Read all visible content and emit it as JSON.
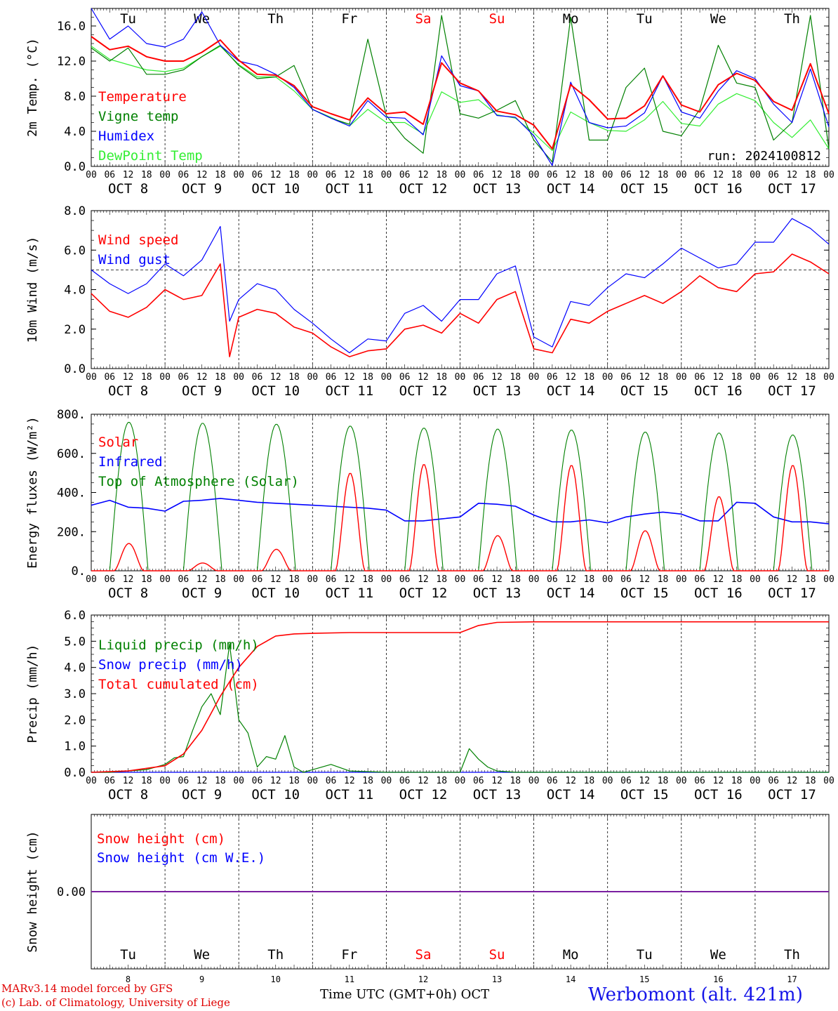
{
  "days": [
    {
      "weekday": "Tu",
      "date": "OCT  8",
      "num": "8",
      "weekend": false
    },
    {
      "weekday": "We",
      "date": "OCT  9",
      "num": "9",
      "weekend": false
    },
    {
      "weekday": "Th",
      "date": "OCT 10",
      "num": "10",
      "weekend": false
    },
    {
      "weekday": "Fr",
      "date": "OCT 11",
      "num": "11",
      "weekend": false
    },
    {
      "weekday": "Sa",
      "date": "OCT 12",
      "num": "12",
      "weekend": true
    },
    {
      "weekday": "Su",
      "date": "OCT 13",
      "num": "13",
      "weekend": true
    },
    {
      "weekday": "Mo",
      "date": "OCT 14",
      "num": "14",
      "weekend": false
    },
    {
      "weekday": "Tu",
      "date": "OCT 15",
      "num": "15",
      "weekend": false
    },
    {
      "weekday": "We",
      "date": "OCT 16",
      "num": "16",
      "weekend": false
    },
    {
      "weekday": "Th",
      "date": "OCT 17",
      "num": "17",
      "weekend": false
    }
  ],
  "hour_ticks": [
    "00",
    "06",
    "12",
    "18"
  ],
  "final_hour_tick": "00",
  "footer": {
    "credit_line1": "MARv3.14 model forced by GFS",
    "credit_line2": "(c) Lab. of Climatology, University of Liege",
    "xaxis_caption": "Time UTC (GMT+0h) OCT",
    "station": "Werbomont (alt. 421m)"
  },
  "colors": {
    "red": "#ff0000",
    "green": "#008000",
    "blue": "#0000ff",
    "light_green": "#33ee33",
    "purple": "#7a1fa0"
  },
  "chart_data": [
    {
      "type": "line",
      "ylabel": "2m Temp. (°C)",
      "ylim": [
        0,
        18
      ],
      "yticks": [
        0,
        4,
        8,
        12,
        16
      ],
      "ytick_labels": [
        "0.0",
        "4.0",
        "8.0",
        "12.0",
        "16.0"
      ],
      "run_label": "run: 2024100812",
      "x_unit": "hours since Oct 8 00:00 UTC",
      "x": [
        0,
        6,
        12,
        18,
        24,
        30,
        36,
        42,
        48,
        54,
        60,
        66,
        72,
        78,
        84,
        90,
        96,
        102,
        108,
        114,
        120,
        126,
        132,
        138,
        144,
        150,
        156,
        162,
        168,
        174,
        180,
        186,
        192,
        198,
        204,
        210,
        216,
        222,
        228,
        234,
        240
      ],
      "series": [
        {
          "name": "Temperature",
          "color": "#ff0000",
          "values": [
            14.8,
            13.3,
            13.7,
            12.5,
            12.0,
            12.0,
            13.0,
            14.4,
            12.1,
            10.5,
            10.4,
            9.2,
            6.8,
            6.0,
            5.3,
            7.8,
            6.0,
            6.2,
            4.8,
            11.8,
            9.5,
            8.6,
            6.3,
            5.9,
            4.7,
            2.0,
            9.3,
            7.6,
            5.4,
            5.5,
            6.9,
            10.3,
            7.0,
            6.2,
            9.3,
            10.6,
            9.8,
            7.4,
            6.4,
            11.7,
            6.0
          ]
        },
        {
          "name": "Vigne temp",
          "color": "#008000",
          "values": [
            13.5,
            12.0,
            13.5,
            10.5,
            10.5,
            11.0,
            12.5,
            13.8,
            11.5,
            10.0,
            10.2,
            11.5,
            6.5,
            5.5,
            4.8,
            14.5,
            5.8,
            3.2,
            1.5,
            17.2,
            6.0,
            5.5,
            6.4,
            7.5,
            3.0,
            0.5,
            17.0,
            3.0,
            3.0,
            9.0,
            11.2,
            4.0,
            3.5,
            6.5,
            13.8,
            9.5,
            9.0,
            3.0,
            5.0,
            17.2,
            2.0
          ]
        },
        {
          "name": "Humidex",
          "color": "#0000ff",
          "values": [
            18.0,
            14.5,
            16.0,
            14.0,
            13.6,
            14.5,
            17.6,
            13.8,
            12.0,
            11.5,
            10.5,
            9.0,
            6.5,
            5.5,
            4.6,
            7.5,
            5.6,
            5.5,
            3.6,
            12.6,
            9.2,
            8.6,
            5.8,
            5.6,
            3.5,
            0.1,
            9.6,
            5.0,
            4.4,
            4.6,
            6.1,
            10.3,
            6.2,
            5.5,
            8.6,
            10.9,
            10.0,
            7.1,
            5.0,
            11.1,
            4.5
          ]
        },
        {
          "name": "DewPoint Temp",
          "color": "#33ee33",
          "values": [
            13.7,
            12.2,
            11.6,
            11.0,
            10.8,
            11.2,
            12.5,
            13.7,
            11.6,
            10.2,
            10.2,
            8.6,
            6.5,
            5.6,
            4.6,
            6.5,
            5.0,
            5.0,
            3.7,
            8.5,
            7.3,
            7.6,
            5.9,
            5.5,
            3.8,
            1.8,
            6.2,
            5.0,
            4.1,
            4.0,
            5.3,
            7.4,
            4.9,
            4.6,
            7.1,
            8.3,
            7.5,
            5.0,
            3.3,
            5.3,
            2.0
          ]
        }
      ]
    },
    {
      "type": "line",
      "ylabel": "10m Wind (m/s)",
      "ylim": [
        0,
        8
      ],
      "yticks": [
        0,
        2,
        4,
        6,
        8
      ],
      "ytick_labels": [
        "0.0",
        "2.0",
        "4.0",
        "6.0",
        "8.0"
      ],
      "reference_line": 5,
      "x": [
        0,
        6,
        12,
        18,
        24,
        30,
        36,
        42,
        45,
        48,
        54,
        60,
        66,
        72,
        78,
        84,
        90,
        96,
        102,
        108,
        114,
        120,
        126,
        132,
        138,
        144,
        150,
        156,
        162,
        168,
        174,
        180,
        186,
        192,
        198,
        204,
        210,
        216,
        222,
        228,
        234,
        240
      ],
      "series": [
        {
          "name": "Wind speed",
          "color": "#ff0000",
          "values": [
            3.8,
            2.9,
            2.6,
            3.1,
            4.0,
            3.5,
            3.7,
            5.3,
            0.6,
            2.6,
            3.0,
            2.8,
            2.1,
            1.8,
            1.1,
            0.6,
            0.9,
            1.0,
            2.0,
            2.2,
            1.8,
            2.8,
            2.3,
            3.5,
            3.9,
            1.0,
            0.8,
            2.5,
            2.3,
            2.9,
            3.3,
            3.7,
            3.3,
            3.9,
            4.7,
            4.1,
            3.9,
            4.8,
            4.9,
            5.8,
            5.4,
            4.8
          ]
        },
        {
          "name": "Wind gust",
          "color": "#0000ff",
          "values": [
            5.0,
            4.3,
            3.8,
            4.3,
            5.3,
            4.7,
            5.5,
            7.2,
            2.4,
            3.5,
            4.3,
            4.0,
            3.0,
            2.3,
            1.5,
            0.8,
            1.5,
            1.4,
            2.8,
            3.2,
            2.4,
            3.5,
            3.5,
            4.8,
            5.2,
            1.6,
            1.1,
            3.4,
            3.2,
            4.1,
            4.8,
            4.6,
            5.3,
            6.1,
            5.6,
            5.1,
            5.3,
            6.4,
            6.4,
            7.6,
            7.1,
            6.3
          ]
        }
      ]
    },
    {
      "type": "line",
      "ylabel": "Energy fluxes (W/m²)",
      "ylim": [
        0,
        800
      ],
      "yticks": [
        0,
        200,
        400,
        600,
        800
      ],
      "ytick_labels": [
        "0.",
        "200.",
        "400.",
        "600.",
        "800."
      ],
      "legend": [
        "Solar",
        "Infrared",
        "Top of Atmosphere (Solar)"
      ],
      "series": [
        {
          "name": "Solar",
          "color": "#ff0000",
          "daily_noon_peak": [
            140,
            40,
            110,
            500,
            545,
            180,
            540,
            205,
            380,
            540
          ]
        },
        {
          "name": "Infrared",
          "color": "#0000ff",
          "x": [
            0,
            6,
            12,
            18,
            24,
            30,
            36,
            42,
            48,
            54,
            60,
            66,
            72,
            78,
            84,
            90,
            96,
            102,
            108,
            114,
            120,
            126,
            132,
            138,
            144,
            150,
            156,
            162,
            168,
            174,
            180,
            186,
            192,
            198,
            204,
            210,
            216,
            222,
            228,
            234,
            240
          ],
          "values": [
            335,
            360,
            325,
            320,
            305,
            355,
            360,
            370,
            360,
            350,
            345,
            340,
            335,
            330,
            325,
            320,
            310,
            255,
            255,
            265,
            275,
            345,
            340,
            330,
            285,
            250,
            250,
            260,
            245,
            275,
            290,
            300,
            290,
            255,
            255,
            350,
            345,
            275,
            250,
            250,
            240
          ]
        },
        {
          "name": "Top of Atmosphere (Solar)",
          "color": "#008000",
          "daily_noon_peak": [
            760,
            755,
            750,
            740,
            730,
            725,
            720,
            710,
            705,
            695
          ]
        }
      ]
    },
    {
      "type": "line",
      "ylabel": "Precip (mm/h)",
      "ylim": [
        0,
        6
      ],
      "yticks": [
        0,
        1,
        2,
        3,
        4,
        5,
        6
      ],
      "ytick_labels": [
        "0.0",
        "1.0",
        "2.0",
        "3.0",
        "4.0",
        "5.0",
        "6.0"
      ],
      "series": [
        {
          "name": "Liquid precip (mm/h)",
          "color": "#008000",
          "x": [
            0,
            6,
            12,
            18,
            24,
            27,
            30,
            33,
            36,
            39,
            42,
            45,
            48,
            51,
            54,
            57,
            60,
            63,
            66,
            69,
            72,
            78,
            84,
            96,
            120,
            123,
            126,
            129,
            132,
            138,
            144,
            240
          ],
          "values": [
            0.0,
            0.0,
            0.05,
            0.1,
            0.3,
            0.55,
            0.6,
            1.6,
            2.5,
            3.0,
            2.2,
            4.9,
            2.0,
            1.5,
            0.2,
            0.6,
            0.5,
            1.4,
            0.2,
            0.0,
            0.1,
            0.3,
            0.05,
            0.0,
            0.0,
            0.9,
            0.5,
            0.2,
            0.05,
            0.0,
            0.0,
            0.0
          ]
        },
        {
          "name": "Snow precip (mm/h)",
          "color": "#0000ff",
          "x": [
            0,
            240
          ],
          "values": [
            0.0,
            0.0
          ]
        },
        {
          "name": "Total cumulated (cm)",
          "color": "#ff0000",
          "x": [
            0,
            12,
            24,
            30,
            36,
            42,
            48,
            54,
            60,
            66,
            72,
            84,
            96,
            120,
            126,
            132,
            144,
            240
          ],
          "values": [
            0.0,
            0.05,
            0.25,
            0.7,
            1.6,
            2.9,
            4.0,
            4.8,
            5.2,
            5.28,
            5.3,
            5.33,
            5.33,
            5.33,
            5.6,
            5.72,
            5.74,
            5.74
          ]
        }
      ]
    },
    {
      "type": "line",
      "ylabel": "Snow height (cm)",
      "ytick_labels": [
        "0.00"
      ],
      "series": [
        {
          "name": "Snow height (cm)",
          "color": "#ff0000",
          "x": [
            0,
            240
          ],
          "values": [
            0,
            0
          ]
        },
        {
          "name": "Snow height (cm W.E.)",
          "color": "#0000ff",
          "x": [
            0,
            240
          ],
          "values": [
            0,
            0
          ]
        }
      ]
    }
  ]
}
